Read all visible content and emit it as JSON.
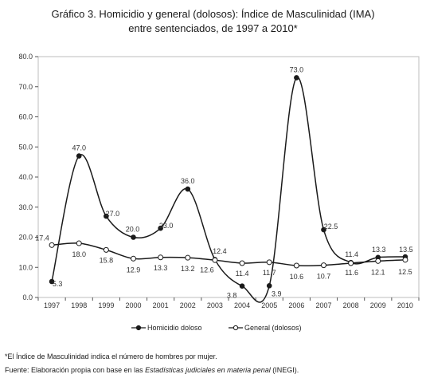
{
  "title_line1": "Gráfico 3. Homicidio y general (dolosos): Índice de Masculinidad (IMA)",
  "title_line2": "entre sentenciados, de 1997 a 2010*",
  "footnote": "*El Índice de Masculinidad indica el número de hombres por mujer.",
  "source": {
    "prefix": "Fuente: Elaboración propia con base en las ",
    "italic": "Estadísticas judiciales en materia penal",
    "suffix": " (INEGI)."
  },
  "chart_data": {
    "type": "line",
    "categories": [
      "1997",
      "1998",
      "1999",
      "2000",
      "2001",
      "2002",
      "2003",
      "2004",
      "2005",
      "2006",
      "2007",
      "2008",
      "2009",
      "2010"
    ],
    "series": [
      {
        "name": "Homicidio doloso",
        "marker": "filled",
        "values": [
          5.3,
          47.0,
          27.0,
          20.0,
          23.0,
          36.0,
          12.6,
          3.8,
          3.9,
          73.0,
          22.5,
          11.6,
          13.3,
          13.5
        ],
        "labels": [
          "5.3",
          "47.0",
          "27.0",
          "20.0",
          "23.0",
          "36.0",
          "12.6",
          "3.8",
          "3.9",
          "73.0",
          "22.5",
          "11.6",
          "13.3",
          "13.5"
        ]
      },
      {
        "name": "General (dolosos)",
        "marker": "hollow",
        "values": [
          17.4,
          18.0,
          15.8,
          12.9,
          13.3,
          13.2,
          12.4,
          11.4,
          11.7,
          10.6,
          10.7,
          11.4,
          12.1,
          12.5
        ],
        "labels": [
          "17.4",
          "18.0",
          "15.8",
          "12.9",
          "13.3",
          "13.2",
          "12.4",
          "11.4",
          "11.7",
          "10.6",
          "10.7",
          "11.4",
          "12.1",
          "12.5"
        ]
      }
    ],
    "ylim": [
      0,
      80
    ],
    "yticks": [
      "0.0",
      "10.0",
      "20.0",
      "30.0",
      "40.0",
      "50.0",
      "60.0",
      "70.0",
      "80.0"
    ],
    "grid": false,
    "legend_position": "bottom",
    "colors": {
      "line": "#1a1a1a",
      "frame": "#bdbdbd",
      "label": "#333333"
    }
  }
}
